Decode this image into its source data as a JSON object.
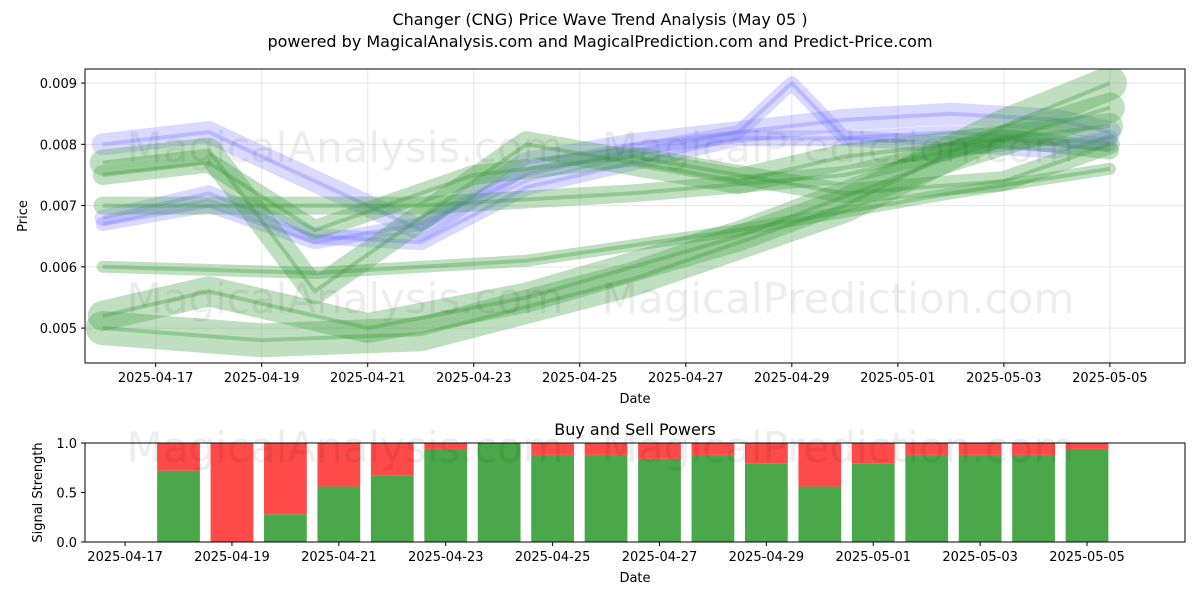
{
  "title": "Changer (CNG) Price Wave Trend Analysis (May 05 )",
  "subtitle": "powered by MagicalAnalysis.com and MagicalPrediction.com and Predict-Price.com",
  "watermarks": [
    "MagicalAnalysis.com",
    "MagicalPrediction.com"
  ],
  "colors": {
    "green": "#3a9a3a",
    "blue": "#7b7bff",
    "buy": "#4aa84a",
    "sell": "#ff4a4a"
  },
  "chart_data": [
    {
      "type": "line",
      "title": "",
      "xlabel": "Date",
      "ylabel": "Price",
      "x_ticks": [
        "2025-04-17",
        "2025-04-19",
        "2025-04-21",
        "2025-04-23",
        "2025-04-25",
        "2025-04-27",
        "2025-04-29",
        "2025-05-01",
        "2025-05-03",
        "2025-05-05"
      ],
      "y_ticks": [
        "0.005",
        "0.006",
        "0.007",
        "0.008",
        "0.009"
      ],
      "xlim": [
        "2025-04-15T16:00",
        "2025-05-06T10:00"
      ],
      "ylim": [
        0.00443,
        0.00923
      ],
      "grid": true,
      "series": [
        {
          "color": "blue",
          "x": [
            "2025-04-16",
            "2025-04-18",
            "2025-04-20",
            "2025-04-22",
            "2025-04-24",
            "2025-04-26",
            "2025-04-28",
            "2025-04-30",
            "2025-05-02",
            "2025-05-04",
            "2025-05-05"
          ],
          "y": [
            0.0068,
            0.0072,
            0.0065,
            0.0064,
            0.0073,
            0.0077,
            0.0081,
            0.0081,
            0.008,
            0.0079,
            0.0081
          ]
        },
        {
          "color": "blue",
          "x": [
            "2025-04-16",
            "2025-04-18",
            "2025-04-20",
            "2025-04-22",
            "2025-04-24",
            "2025-04-26",
            "2025-04-28",
            "2025-04-30",
            "2025-05-02",
            "2025-05-04",
            "2025-05-05"
          ],
          "y": [
            0.008,
            0.0082,
            0.0074,
            0.0066,
            0.0077,
            0.008,
            0.0082,
            0.0084,
            0.0085,
            0.0084,
            0.0082
          ]
        },
        {
          "color": "blue",
          "x": [
            "2025-04-16",
            "2025-04-18",
            "2025-04-20",
            "2025-04-22",
            "2025-04-24",
            "2025-04-26",
            "2025-04-28",
            "2025-04-29",
            "2025-04-30",
            "2025-05-02",
            "2025-05-05"
          ],
          "y": [
            0.0067,
            0.007,
            0.0064,
            0.0067,
            0.0075,
            0.0079,
            0.0082,
            0.009,
            0.0081,
            0.0082,
            0.008
          ]
        },
        {
          "color": "green",
          "x": [
            "2025-04-16",
            "2025-04-18",
            "2025-04-20",
            "2025-04-22",
            "2025-04-24",
            "2025-04-26",
            "2025-04-28",
            "2025-04-30",
            "2025-05-02",
            "2025-05-04",
            "2025-05-05"
          ],
          "y": [
            0.0077,
            0.0079,
            0.0056,
            0.0068,
            0.008,
            0.0077,
            0.0074,
            0.0078,
            0.008,
            0.0082,
            0.0083
          ]
        },
        {
          "color": "green",
          "x": [
            "2025-04-16",
            "2025-04-20",
            "2025-04-24",
            "2025-04-28",
            "2025-05-02",
            "2025-05-05"
          ],
          "y": [
            0.006,
            0.0059,
            0.0061,
            0.0066,
            0.0072,
            0.0076
          ]
        },
        {
          "color": "green",
          "x": [
            "2025-04-16",
            "2025-04-18",
            "2025-04-21",
            "2025-04-24",
            "2025-04-28",
            "2025-05-02",
            "2025-05-05"
          ],
          "y": [
            0.0052,
            0.0056,
            0.005,
            0.0055,
            0.0065,
            0.0078,
            0.0086
          ]
        },
        {
          "color": "green",
          "x": [
            "2025-04-16",
            "2025-04-22",
            "2025-04-26",
            "2025-04-30",
            "2025-05-03",
            "2025-05-05"
          ],
          "y": [
            0.007,
            0.007,
            0.0072,
            0.0075,
            0.0081,
            0.0079
          ]
        },
        {
          "color": "green",
          "x": [
            "2025-04-16",
            "2025-04-19",
            "2025-04-22",
            "2025-04-26",
            "2025-04-30",
            "2025-05-03",
            "2025-05-05"
          ],
          "y": [
            0.005,
            0.0048,
            0.0049,
            0.0058,
            0.007,
            0.0083,
            0.009
          ]
        },
        {
          "color": "green",
          "x": [
            "2025-04-16",
            "2025-04-18",
            "2025-04-20",
            "2025-04-23",
            "2025-04-26",
            "2025-04-30",
            "2025-05-03",
            "2025-05-05"
          ],
          "y": [
            0.0075,
            0.0077,
            0.0066,
            0.0075,
            0.0078,
            0.0072,
            0.0074,
            0.008
          ]
        }
      ]
    },
    {
      "type": "bar",
      "title": "Buy and Sell Powers",
      "xlabel": "Date",
      "ylabel": "Signal Strength",
      "x_ticks": [
        "2025-04-17",
        "2025-04-19",
        "2025-04-21",
        "2025-04-23",
        "2025-04-25",
        "2025-04-27",
        "2025-04-29",
        "2025-05-01",
        "2025-05-03",
        "2025-05-05"
      ],
      "y_ticks": [
        "0.0",
        "0.5",
        "1.0"
      ],
      "xlim": [
        "2025-04-16T06:00",
        "2025-05-06T20:00"
      ],
      "ylim": [
        0,
        1
      ],
      "categories": [
        "2025-04-18",
        "2025-04-19",
        "2025-04-20",
        "2025-04-21",
        "2025-04-22",
        "2025-04-23",
        "2025-04-24",
        "2025-04-25",
        "2025-04-26",
        "2025-04-27",
        "2025-04-28",
        "2025-04-29",
        "2025-04-30",
        "2025-05-01",
        "2025-05-02",
        "2025-05-03",
        "2025-05-04",
        "2025-05-05"
      ],
      "series": [
        {
          "name": "Buy",
          "values": [
            0.72,
            0.0,
            0.28,
            0.56,
            0.67,
            0.94,
            1.0,
            0.88,
            0.88,
            0.84,
            0.88,
            0.79,
            0.56,
            0.79,
            0.88,
            0.88,
            0.88,
            0.94
          ]
        },
        {
          "name": "Sell",
          "values": [
            0.28,
            1.0,
            0.72,
            0.44,
            0.33,
            0.06,
            0.0,
            0.12,
            0.12,
            0.16,
            0.12,
            0.21,
            0.44,
            0.21,
            0.12,
            0.12,
            0.12,
            0.06
          ]
        }
      ]
    }
  ]
}
